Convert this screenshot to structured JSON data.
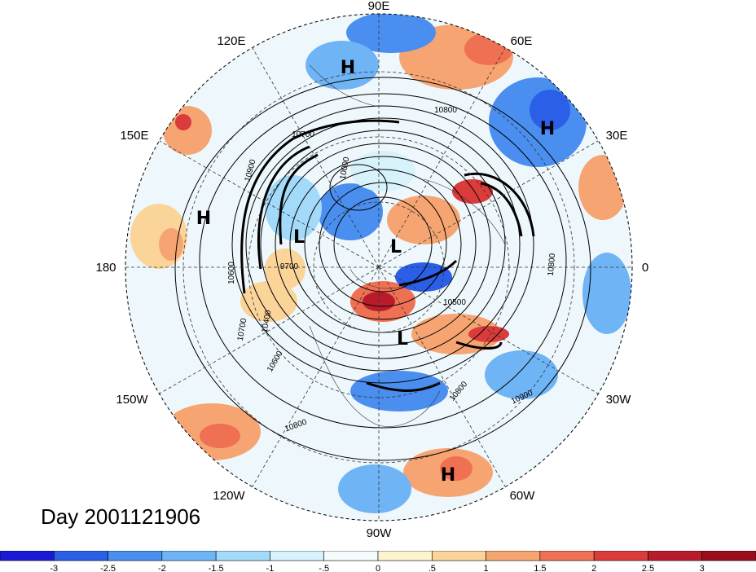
{
  "title": "Day 2001121906",
  "lon_labels": {
    "top": "90E",
    "upper_left": "120E",
    "upper_right": "60E",
    "mid_upper_left": "150E",
    "mid_upper_right": "30E",
    "left": "180",
    "right": "0",
    "mid_lower_left": "150W",
    "mid_lower_right": "30W",
    "lower_left": "120W",
    "lower_right": "60W",
    "bottom": "90W"
  },
  "pressure_centers": [
    "H",
    "H",
    "H",
    "H",
    "L",
    "L",
    "L"
  ],
  "contour_labels": [
    "10800",
    "10700",
    "10900",
    "10000",
    "9700",
    "10600",
    "10400",
    "10500",
    "10700",
    "10800",
    "10900",
    "10800",
    "10600",
    "10800"
  ],
  "colorbar": {
    "ticks": [
      "-3",
      "-2.5",
      "-2",
      "-1.5",
      "-1",
      "-.5",
      "0",
      ".5",
      "1",
      "1.5",
      "2",
      "2.5",
      "3"
    ],
    "colors": [
      "#1a1ad6",
      "#2b5fe8",
      "#4a8ef0",
      "#6fb4f5",
      "#a3daf9",
      "#d7f2fb",
      "#f5fbfd",
      "#fdf3cf",
      "#fbd49a",
      "#f6a572",
      "#ef7052",
      "#dc3b3b",
      "#b81c2c",
      "#9a0d1c"
    ]
  }
}
